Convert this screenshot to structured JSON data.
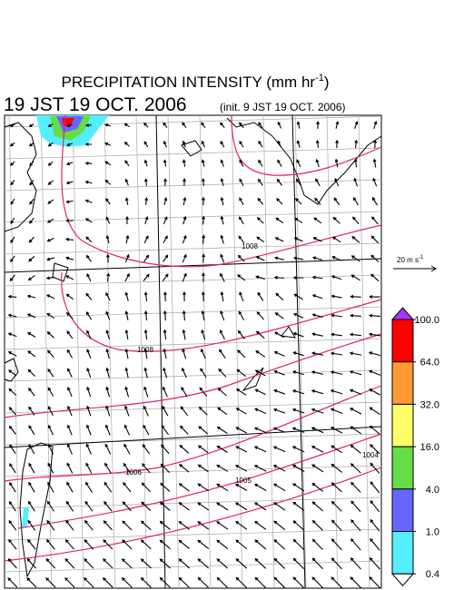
{
  "header": {
    "title_main": "PRECIPITATION INTENSITY (mm hr",
    "title_sup": "-1",
    "title_end": ")",
    "valid_time": "19 JST 19 OCT. 2006",
    "init_time": "(init. 9 JST 19 OCT. 2006)"
  },
  "wind_scale": {
    "label_main": "20 m s",
    "label_sup": "-1"
  },
  "colorbar": {
    "levels": [
      {
        "value": 100,
        "label": "100.0"
      },
      {
        "value": 64,
        "label": "64.0"
      },
      {
        "value": 32,
        "label": "32.0"
      },
      {
        "value": 16,
        "label": "16.0"
      },
      {
        "value": 4,
        "label": "4.0"
      },
      {
        "value": 1,
        "label": "1.0"
      },
      {
        "value": 0.4,
        "label": "0.4"
      }
    ],
    "colors": [
      "#ff0000",
      "#ff9933",
      "#ffff66",
      "#66dd44",
      "#6666ff",
      "#55eeff"
    ],
    "over_color": "#aa33ff",
    "under_color": "#ffffff"
  },
  "isobar_labels": [
    "1008",
    "1008",
    "1006",
    "1005",
    "1004"
  ]
}
